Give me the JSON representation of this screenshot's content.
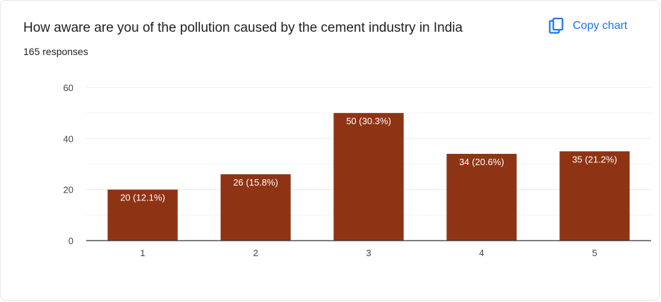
{
  "header": {
    "title": "How aware are you of the pollution caused by the cement industry in India",
    "responses": "165 responses",
    "copy_label": "Copy chart",
    "copy_icon": "copy-icon"
  },
  "colors": {
    "bar": "#8e3414",
    "accent": "#1a73e8",
    "grid": "#ececec",
    "axis": "#333333"
  },
  "chart_data": {
    "type": "bar",
    "title": "How aware are you of the pollution caused by the cement industry in India",
    "xlabel": "",
    "ylabel": "",
    "categories": [
      "1",
      "2",
      "3",
      "4",
      "5"
    ],
    "values": [
      20,
      26,
      50,
      34,
      35
    ],
    "data_labels": [
      "20 (12.1%)",
      "26 (15.8%)",
      "50 (30.3%)",
      "34 (20.6%)",
      "35 (21.2%)"
    ],
    "ylim": [
      0,
      60
    ],
    "yticks": [
      0,
      20,
      40,
      60
    ],
    "grid": true,
    "legend": "none"
  }
}
